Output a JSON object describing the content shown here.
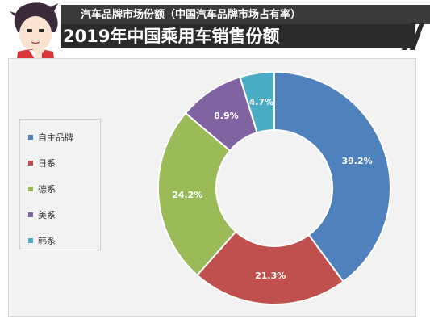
{
  "header": {
    "top_title": "汽车品牌市场份额（中国汽车品牌市场占有率）",
    "main_title": "2019年中国乘用车销售份额"
  },
  "chart_data": {
    "type": "pie",
    "donut": true,
    "title": "2019年中国乘用车销售份额",
    "categories": [
      "自主品牌",
      "日系",
      "德系",
      "美系",
      "韩系"
    ],
    "values": [
      39.2,
      21.3,
      24.2,
      8.9,
      4.7
    ],
    "labels": [
      "39.2%",
      "21.3%",
      "24.2%",
      "8.9%",
      "4.7%"
    ],
    "colors": [
      "#4f81bd",
      "#c0504d",
      "#9bbb59",
      "#8064a2",
      "#4bacc6"
    ],
    "legend_position": "left"
  }
}
